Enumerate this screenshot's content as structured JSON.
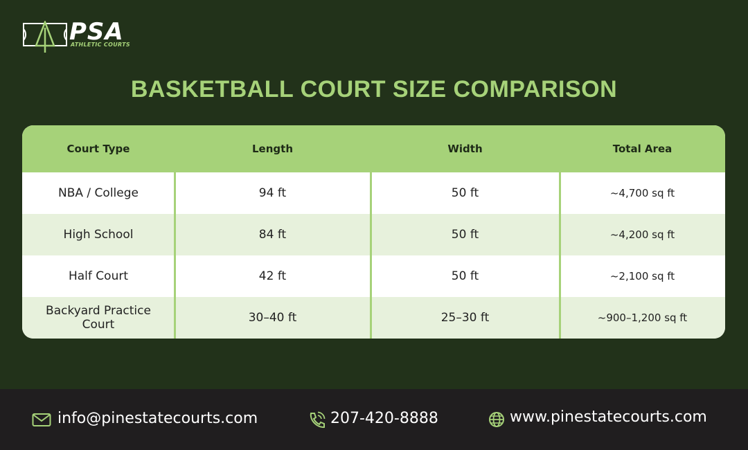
{
  "logo": {
    "name": "PSA",
    "tagline": "ATHLETIC COURTS"
  },
  "title": "BASKETBALL COURT SIZE COMPARISON",
  "table": {
    "header": [
      "Court Type",
      "Length",
      "Width",
      "Total Area"
    ],
    "rows": [
      [
        "NBA / College",
        "94 ft",
        "50 ft",
        "~4,700 sq ft"
      ],
      [
        "High School",
        "84 ft",
        "50 ft",
        "~4,200 sq ft"
      ],
      [
        "Half Court",
        "42 ft",
        "50 ft",
        "~2,100 sq ft"
      ],
      [
        "Backyard Practice Court",
        "30–40 ft",
        "25–30 ft",
        "~900–1,200 sq ft"
      ]
    ]
  },
  "footer": {
    "email": "info@pinestatecourts.com",
    "phone": "207-420-8888",
    "website": "www.pinestatecourts.com"
  }
}
